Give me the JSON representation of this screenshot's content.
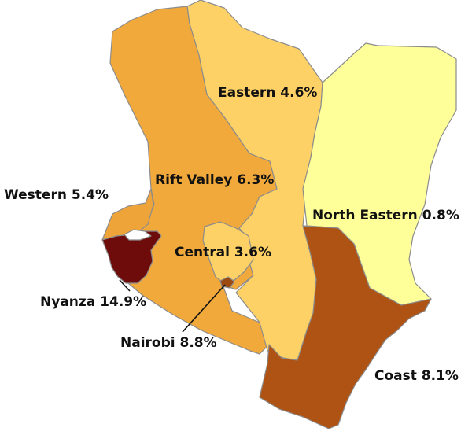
{
  "map": {
    "regions": [
      {
        "id": "north-eastern",
        "name": "North Eastern",
        "value_text": "0.8%",
        "value": 0.8,
        "color": "#ffff99"
      },
      {
        "id": "eastern",
        "name": "Eastern",
        "value_text": "4.6%",
        "value": 4.6,
        "color": "#fdd165"
      },
      {
        "id": "rift-valley",
        "name": "Rift Valley",
        "value_text": "6.3%",
        "value": 6.3,
        "color": "#f2a93b"
      },
      {
        "id": "western",
        "name": "Western",
        "value_text": "5.4%",
        "value": 5.4,
        "color": "#efa43a"
      },
      {
        "id": "nyanza",
        "name": "Nyanza",
        "value_text": "14.9%",
        "value": 14.9,
        "color": "#6e0c0c"
      },
      {
        "id": "central",
        "name": "Central",
        "value_text": "3.6%",
        "value": 3.6,
        "color": "#fdd165"
      },
      {
        "id": "nairobi",
        "name": "Nairobi",
        "value_text": "8.8%",
        "value": 8.8,
        "color": "#9b4a12"
      },
      {
        "id": "coast",
        "name": "Coast",
        "value_text": "8.1%",
        "value": 8.1,
        "color": "#ae5313"
      }
    ],
    "lake_color": "#ffffff",
    "border_color": "#8c8c8c"
  }
}
